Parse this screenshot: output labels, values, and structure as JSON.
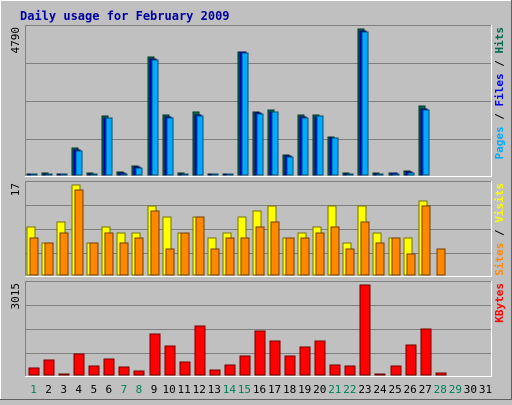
{
  "chart_data": {
    "type": "bar",
    "title": "Daily usage for February 2009",
    "categories": [
      "1",
      "2",
      "3",
      "4",
      "5",
      "6",
      "7",
      "8",
      "9",
      "10",
      "11",
      "12",
      "13",
      "14",
      "15",
      "16",
      "17",
      "18",
      "19",
      "20",
      "21",
      "22",
      "23",
      "24",
      "25",
      "26",
      "27",
      "28",
      "29",
      "30",
      "31"
    ],
    "weekend_days": [
      "1",
      "7",
      "8",
      "14",
      "15",
      "21",
      "22",
      "28",
      "29"
    ],
    "panels": [
      {
        "key": "hits",
        "max_label": "4790",
        "ymax": 4790,
        "right_labels": [
          {
            "text": "Pages",
            "color": "#00aaff"
          },
          {
            "text": " / ",
            "color": "#000000"
          },
          {
            "text": "Files",
            "color": "#0000ff"
          },
          {
            "text": " / ",
            "color": "#000000"
          },
          {
            "text": "Hits",
            "color": "#006a4e"
          }
        ],
        "series": [
          {
            "name": "Hits",
            "color": "#006f4b",
            "values": [
              40,
              50,
              40,
              900,
              60,
              1940,
              110,
              300,
              3880,
              1960,
              60,
              2060,
              40,
              40,
              4040,
              2060,
              2140,
              660,
              1970,
              1960,
              1250,
              50,
              4780,
              50,
              80,
              130,
              2250,
              0,
              0,
              0,
              0
            ]
          },
          {
            "name": "Files",
            "color": "#0000ff",
            "values": [
              20,
              30,
              20,
              820,
              40,
              1880,
              70,
              250,
              3820,
              1900,
              40,
              1980,
              20,
              20,
              4020,
              2020,
              2080,
              620,
              1910,
              1910,
              1200,
              30,
              4720,
              30,
              50,
              100,
              2160,
              0,
              0,
              0,
              0
            ]
          },
          {
            "name": "Pages",
            "color": "#00aaff",
            "values": [
              5,
              10,
              5,
              780,
              10,
              1860,
              30,
              240,
              3780,
              1880,
              10,
              1930,
              5,
              5,
              4000,
              1990,
              2060,
              600,
              1880,
              1920,
              1200,
              10,
              4700,
              10,
              20,
              60,
              2140,
              0,
              0,
              0,
              0
            ]
          }
        ]
      },
      {
        "key": "visits",
        "max_label": "17",
        "ymax": 17,
        "right_labels": [
          {
            "text": "Sites",
            "color": "#ff8800"
          },
          {
            "text": " / ",
            "color": "#000000"
          },
          {
            "text": "Visits",
            "color": "#ffff00"
          }
        ],
        "series": [
          {
            "name": "Visits",
            "color": "#ffff00",
            "values": [
              9,
              6,
              10,
              17,
              6,
              9,
              8,
              8,
              13,
              11,
              8,
              11,
              7,
              8,
              11,
              12,
              13,
              7,
              8,
              9,
              13,
              6,
              13,
              8,
              7,
              7,
              14,
              0,
              0,
              0,
              0
            ]
          },
          {
            "name": "Sites",
            "color": "#ff8800",
            "values": [
              7,
              6,
              8,
              16,
              6,
              8,
              6,
              7,
              12,
              5,
              8,
              11,
              5,
              7,
              7,
              9,
              10,
              7,
              7,
              8,
              9,
              5,
              10,
              6,
              7,
              4,
              13,
              5,
              0,
              0,
              0
            ]
          }
        ]
      },
      {
        "key": "kbytes",
        "max_label": "3015",
        "ymax": 3015,
        "right_labels": [
          {
            "text": "KBytes",
            "color": "#ff0000"
          }
        ],
        "series": [
          {
            "name": "KBytes",
            "color": "#ff0000",
            "values": [
              230,
              510,
              30,
              690,
              300,
              530,
              280,
              150,
              1380,
              970,
              430,
              1630,
              180,
              330,
              640,
              1480,
              1130,
              650,
              950,
              1140,
              320,
              290,
              3015,
              30,
              310,
              1010,
              1540,
              80,
              0,
              0,
              0
            ]
          }
        ]
      }
    ]
  }
}
